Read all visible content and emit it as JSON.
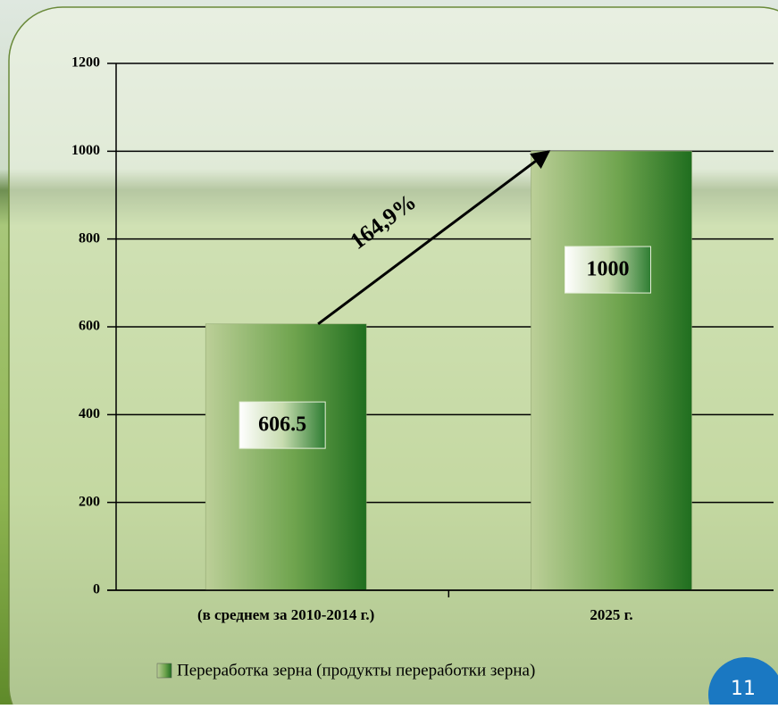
{
  "chart_data": {
    "type": "bar",
    "categories": [
      "(в среднем за 2010-2014 г.)",
      "2025 г."
    ],
    "values": [
      606.5,
      1000
    ],
    "color": "#1f6e1f",
    "ylim": [
      0,
      1200
    ],
    "yticks": [
      0,
      200,
      400,
      600,
      800,
      1000,
      1200
    ],
    "grid": true,
    "annotation": "164,9%",
    "legend": "Переработка зерна (продукты переработки зерна)"
  },
  "page_number": "11"
}
